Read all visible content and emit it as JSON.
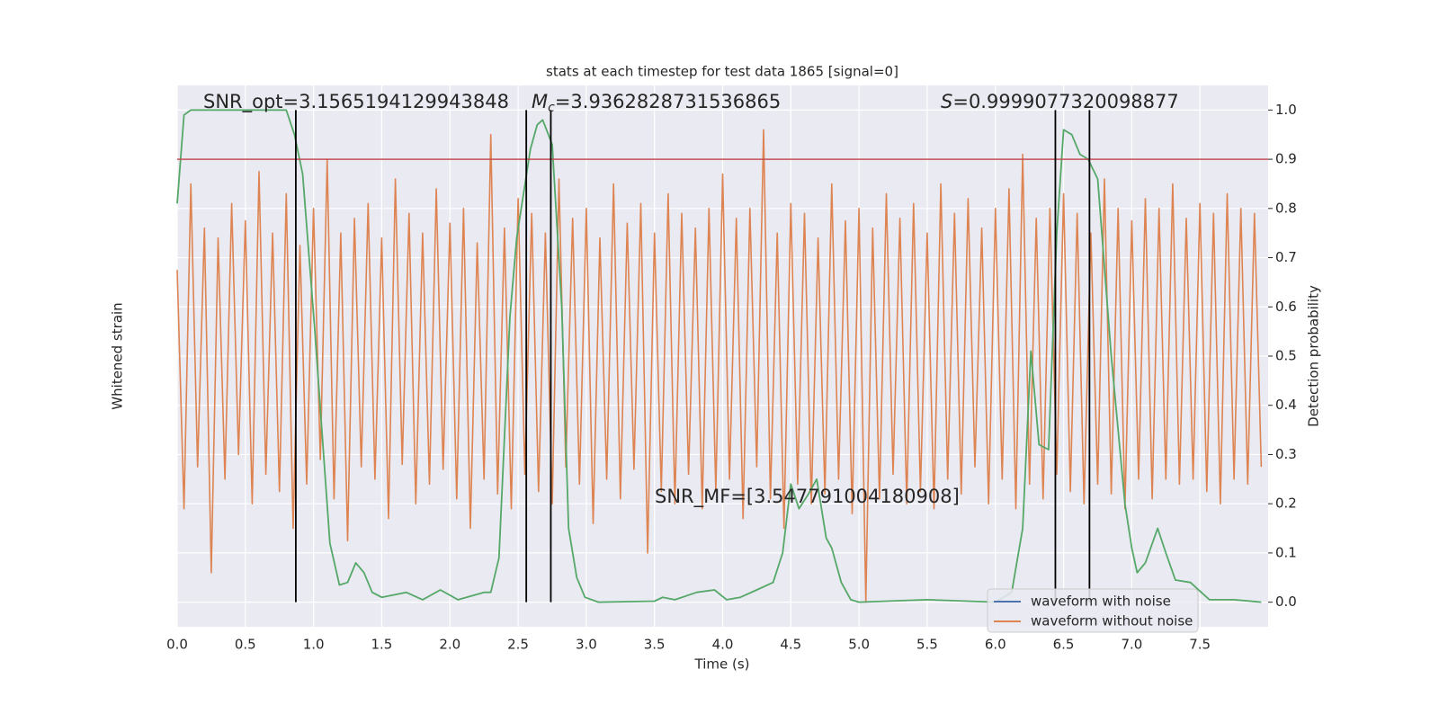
{
  "chart_data": {
    "type": "line",
    "title": "stats at each timestep for test data 1865 [signal=0]",
    "xlabel": "Time (s)",
    "ylabel": "Whitened strain",
    "y2label": "Detection probability",
    "xlim": [
      0,
      8
    ],
    "ylim": [
      -1.1,
      1.1
    ],
    "y2lim": [
      -0.05,
      1.05
    ],
    "xticks": [
      {
        "value": 0,
        "label": "0.0"
      },
      {
        "value": 0.5,
        "label": "0.5"
      },
      {
        "value": 1,
        "label": "1.0"
      },
      {
        "value": 1.5,
        "label": "1.5"
      },
      {
        "value": 2,
        "label": "2.0"
      },
      {
        "value": 2.5,
        "label": "2.5"
      },
      {
        "value": 3,
        "label": "3.0"
      },
      {
        "value": 3.5,
        "label": "3.5"
      },
      {
        "value": 4,
        "label": "4.0"
      },
      {
        "value": 4.5,
        "label": "4.5"
      },
      {
        "value": 5,
        "label": "5.0"
      },
      {
        "value": 5.5,
        "label": "5.5"
      },
      {
        "value": 6,
        "label": "6.0"
      },
      {
        "value": 6.5,
        "label": "6.5"
      },
      {
        "value": 7,
        "label": "7.0"
      },
      {
        "value": 7.5,
        "label": "7.5"
      }
    ],
    "y2ticks": [
      {
        "value": 0,
        "label": "0.0"
      },
      {
        "value": 0.1,
        "label": "0.1"
      },
      {
        "value": 0.2,
        "label": "0.2"
      },
      {
        "value": 0.3,
        "label": "0.3"
      },
      {
        "value": 0.4,
        "label": "0.4"
      },
      {
        "value": 0.5,
        "label": "0.5"
      },
      {
        "value": 0.6,
        "label": "0.6"
      },
      {
        "value": 0.7,
        "label": "0.7"
      },
      {
        "value": 0.8,
        "label": "0.8"
      },
      {
        "value": 0.9,
        "label": "0.9"
      },
      {
        "value": 1,
        "label": "1.0"
      }
    ],
    "grid": true,
    "legend_position": "lower right",
    "legend": [
      {
        "name": "waveform with noise",
        "color": "#4c72b0"
      },
      {
        "name": "waveform without noise",
        "color": "#dd8452"
      }
    ],
    "series": [
      {
        "name": "waveform without noise",
        "color": "#dd8452",
        "axis": "y",
        "x": [
          0,
          0.05,
          0.1,
          0.15,
          0.2,
          0.25,
          0.3,
          0.35,
          0.4,
          0.45,
          0.5,
          0.55,
          0.6,
          0.65,
          0.7,
          0.75,
          0.8,
          0.85,
          0.9,
          0.95,
          1,
          1.05,
          1.1,
          1.15,
          1.2,
          1.25,
          1.3,
          1.35,
          1.4,
          1.45,
          1.5,
          1.55,
          1.6,
          1.65,
          1.7,
          1.75,
          1.8,
          1.85,
          1.9,
          1.95,
          2,
          2.05,
          2.1,
          2.15,
          2.2,
          2.25,
          2.3,
          2.35,
          2.4,
          2.45,
          2.5,
          2.55,
          2.6,
          2.65,
          2.7,
          2.75,
          2.8,
          2.85,
          2.9,
          2.95,
          3,
          3.05,
          3.1,
          3.15,
          3.2,
          3.25,
          3.3,
          3.35,
          3.4,
          3.45,
          3.5,
          3.55,
          3.6,
          3.65,
          3.7,
          3.75,
          3.8,
          3.85,
          3.9,
          3.95,
          4,
          4.05,
          4.1,
          4.15,
          4.2,
          4.25,
          4.3,
          4.35,
          4.4,
          4.45,
          4.5,
          4.55,
          4.6,
          4.65,
          4.7,
          4.75,
          4.8,
          4.85,
          4.9,
          4.95,
          5,
          5.05,
          5.1,
          5.15,
          5.2,
          5.25,
          5.3,
          5.35,
          5.4,
          5.45,
          5.5,
          5.55,
          5.6,
          5.65,
          5.7,
          5.75,
          5.8,
          5.85,
          5.9,
          5.95,
          6,
          6.05,
          6.1,
          6.15,
          6.2,
          6.25,
          6.3,
          6.35,
          6.4,
          6.45,
          6.5,
          6.55,
          6.6,
          6.65,
          6.7,
          6.75,
          6.8,
          6.85,
          6.9,
          6.95,
          7,
          7.05,
          7.1,
          7.15,
          7.2,
          7.25,
          7.3,
          7.35,
          7.4,
          7.45,
          7.5,
          7.55,
          7.6,
          7.65,
          7.7,
          7.75,
          7.8,
          7.85,
          7.9,
          7.95
        ],
        "values": [
          0.35,
          -0.62,
          0.7,
          -0.45,
          0.52,
          -0.88,
          0.48,
          -0.5,
          0.62,
          -0.4,
          0.55,
          -0.6,
          0.75,
          -0.48,
          0.5,
          -0.55,
          0.66,
          -0.7,
          0.45,
          -0.52,
          0.6,
          -0.42,
          0.8,
          -0.58,
          0.5,
          -0.75,
          0.56,
          -0.45,
          0.62,
          -0.5,
          0.48,
          -0.66,
          0.72,
          -0.44,
          0.58,
          -0.6,
          0.5,
          -0.52,
          0.68,
          -0.46,
          0.54,
          -0.58,
          0.6,
          -0.7,
          0.46,
          -0.5,
          0.9,
          -0.56,
          0.52,
          -0.62,
          0.64,
          -0.48,
          0.58,
          -0.55,
          0.5,
          -0.6,
          0.72,
          -0.45,
          0.56,
          -0.52,
          0.6,
          -0.68,
          0.48,
          -0.5,
          0.7,
          -0.58,
          0.54,
          -0.46,
          0.62,
          -0.8,
          0.5,
          -0.55,
          0.66,
          -0.6,
          0.58,
          -0.48,
          0.52,
          -0.62,
          0.6,
          -0.55,
          0.74,
          -0.5,
          0.56,
          -0.66,
          0.6,
          -0.45,
          0.92,
          -0.58,
          0.5,
          -0.7,
          0.62,
          -0.52,
          0.58,
          -0.6,
          0.48,
          -0.56,
          0.7,
          -0.5,
          0.55,
          -0.64,
          0.6,
          -1.0,
          0.52,
          -0.58,
          0.66,
          -0.48,
          0.56,
          -0.6,
          0.62,
          -0.55,
          0.5,
          -0.62,
          0.7,
          -0.5,
          0.58,
          -0.56,
          0.64,
          -0.45,
          0.52,
          -0.6,
          0.6,
          -0.5,
          0.68,
          -0.62,
          0.82,
          -0.52,
          0.56,
          -0.58,
          0.6,
          -0.48,
          0.66,
          -0.55,
          0.58,
          -0.6,
          0.5,
          -0.52,
          0.72,
          -0.56,
          0.6,
          -0.62,
          0.55,
          -0.5,
          0.64,
          -0.58,
          0.6,
          -0.5,
          0.7,
          -0.52,
          0.56,
          -0.5,
          0.62,
          -0.55,
          0.58,
          -0.6,
          0.66,
          -0.5,
          0.6,
          -0.52,
          0.58,
          -0.45
        ]
      },
      {
        "color": "#55a868",
        "axis": "y2",
        "x": [
          0,
          0.05,
          0.1,
          0.8,
          0.86,
          0.92,
          1.01,
          1.12,
          1.19,
          1.25,
          1.31,
          1.37,
          1.43,
          1.5,
          1.68,
          1.8,
          1.93,
          2.06,
          2.25,
          2.3,
          2.36,
          2.44,
          2.49,
          2.59,
          2.64,
          2.68,
          2.75,
          2.82,
          2.87,
          2.93,
          2.99,
          3.09,
          3.5,
          3.56,
          3.65,
          3.81,
          3.94,
          4.03,
          4.13,
          4.25,
          4.37,
          4.44,
          4.5,
          4.56,
          4.63,
          4.69,
          4.76,
          4.8,
          4.87,
          4.94,
          5,
          5.5,
          6,
          6.12,
          6.2,
          6.26,
          6.32,
          6.39,
          6.45,
          6.5,
          6.56,
          6.62,
          6.68,
          6.75,
          6.85,
          6.95,
          7,
          7.04,
          7.1,
          7.19,
          7.25,
          7.32,
          7.43,
          7.57,
          7.75,
          7.95
        ],
        "values": [
          0.81,
          0.99,
          1.0,
          1.0,
          0.95,
          0.87,
          0.55,
          0.12,
          0.035,
          0.04,
          0.08,
          0.06,
          0.02,
          0.01,
          0.02,
          0.005,
          0.025,
          0.005,
          0.02,
          0.02,
          0.09,
          0.58,
          0.74,
          0.92,
          0.97,
          0.98,
          0.93,
          0.6,
          0.15,
          0.05,
          0.01,
          0.0,
          0.002,
          0.01,
          0.005,
          0.02,
          0.025,
          0.005,
          0.01,
          0.025,
          0.04,
          0.1,
          0.24,
          0.19,
          0.22,
          0.25,
          0.13,
          0.11,
          0.04,
          0.005,
          0.0,
          0.005,
          0.0,
          0.02,
          0.15,
          0.51,
          0.32,
          0.31,
          0.75,
          0.96,
          0.95,
          0.91,
          0.9,
          0.86,
          0.5,
          0.2,
          0.11,
          0.06,
          0.08,
          0.15,
          0.1,
          0.045,
          0.04,
          0.005,
          0.005,
          0.0
        ]
      }
    ],
    "vlines": {
      "color": "#000000",
      "x": [
        0.87,
        2.56,
        2.74,
        6.44,
        6.69
      ],
      "ymin": 0,
      "ymax": 1
    },
    "hline": {
      "color": "#c44e52",
      "value": 0.9
    },
    "annotations": {
      "snr_opt": "SNR_opt=3.1565194129943848",
      "mc": {
        "symbol": "M",
        "subscript": "c",
        "text": "=3.9362828731536865"
      },
      "s": {
        "symbol": "S",
        "text": "=0.9999077320098877"
      },
      "snr_mf": "SNR_MF=[3.547791004180908]"
    }
  }
}
